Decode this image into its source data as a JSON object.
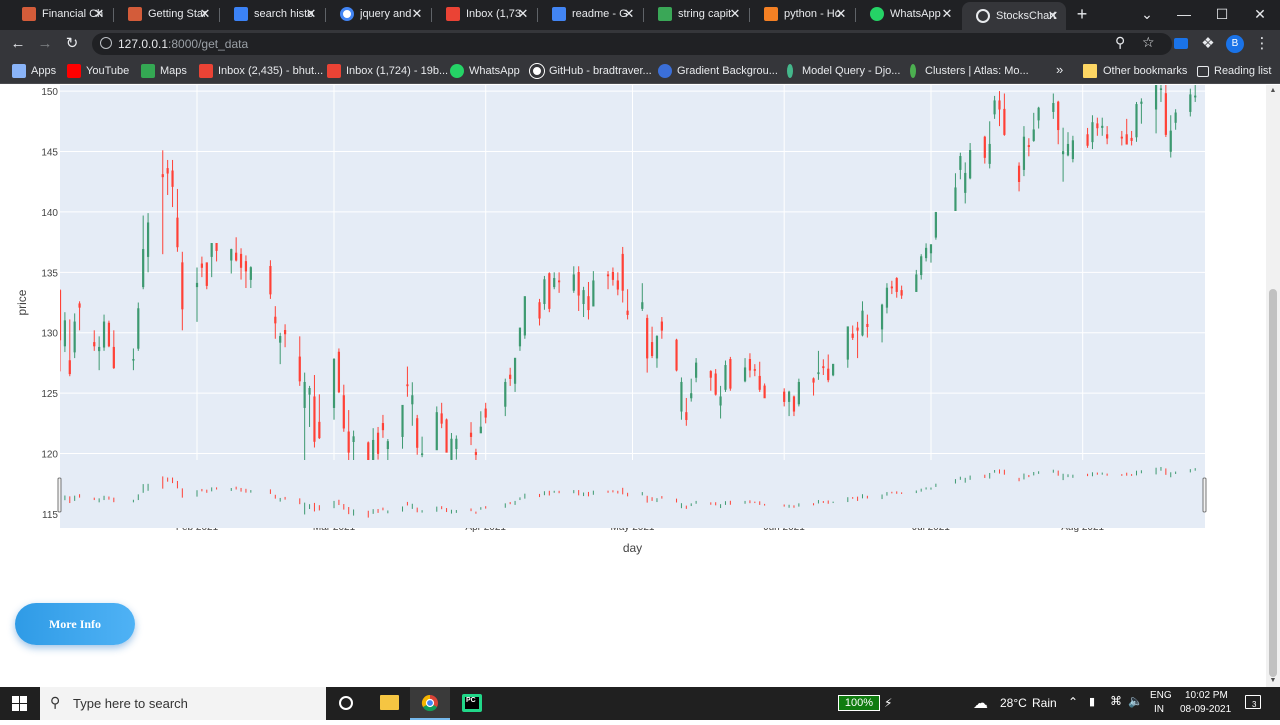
{
  "browser": {
    "tabs": [
      {
        "title": "Financial Ch",
        "icon": "chart-favicon-icon",
        "color": "#d35c3a"
      },
      {
        "title": "Getting Star",
        "icon": "chart-favicon-icon",
        "color": "#d35c3a"
      },
      {
        "title": "search histo",
        "icon": "edge-favicon-icon",
        "color": "#3b82f6"
      },
      {
        "title": "jquery and",
        "icon": "google-favicon-icon",
        "color": "#ffffff"
      },
      {
        "title": "Inbox (1,73",
        "icon": "gmail-favicon-icon",
        "color": "#ea4335"
      },
      {
        "title": "readme - G",
        "icon": "docs-favicon-icon",
        "color": "#4285f4"
      },
      {
        "title": "string capit",
        "icon": "link-favicon-icon",
        "color": "#3aa757"
      },
      {
        "title": "python - Ho",
        "icon": "stackoverflow-favicon-icon",
        "color": "#f48024"
      },
      {
        "title": "WhatsApp",
        "icon": "whatsapp-favicon-icon",
        "color": "#25d366"
      },
      {
        "title": "StocksChart",
        "icon": "globe-favicon-icon",
        "color": "#e8eaed",
        "active": true
      }
    ],
    "new_tab_label": "+",
    "url_host": "127.0.0.1",
    "url_path": ":8000/get_data",
    "profile_initial": "B",
    "bookmarks": [
      {
        "label": "Apps",
        "icon": "apps-grid-icon",
        "color": "#8ab4f8"
      },
      {
        "label": "YouTube",
        "icon": "youtube-icon",
        "color": "#ff0000"
      },
      {
        "label": "Maps",
        "icon": "maps-pin-icon",
        "color": "#34a853"
      },
      {
        "label": "Inbox (2,435) - bhut...",
        "icon": "gmail-icon",
        "color": "#ea4335"
      },
      {
        "label": "Inbox (1,724) - 19b...",
        "icon": "gmail-icon",
        "color": "#ea4335"
      },
      {
        "label": "WhatsApp",
        "icon": "whatsapp-icon",
        "color": "#25d366"
      },
      {
        "label": "GitHub - bradtraver...",
        "icon": "github-icon",
        "color": "#ffffff"
      },
      {
        "label": "Gradient Backgrou...",
        "icon": "gradient-icon",
        "color": "#3b6fd8"
      },
      {
        "label": "Model Query - Djo...",
        "icon": "django-icon",
        "color": "#44b78b"
      },
      {
        "label": "Clusters | Atlas: Mo...",
        "icon": "mongodb-leaf-icon",
        "color": "#4caf50"
      }
    ],
    "overflow_label": "»",
    "other_bookmarks": "Other bookmarks",
    "reading_list": "Reading list"
  },
  "chart_data": {
    "type": "candlestick",
    "ylabel": "price",
    "xlabel": "day",
    "y_ticks": [
      115,
      120,
      125,
      130,
      135,
      140,
      145,
      150
    ],
    "ylim": [
      114.5,
      151
    ],
    "xlim": [
      "2021-01-04",
      "2021-08-26"
    ],
    "x_ticks": [
      {
        "date": "2021-02-01",
        "label": "Feb 2021"
      },
      {
        "date": "2021-03-01",
        "label": "Mar 2021"
      },
      {
        "date": "2021-04-01",
        "label": "Apr 2021"
      },
      {
        "date": "2021-05-01",
        "label": "May 2021"
      },
      {
        "date": "2021-06-01",
        "label": "Jun 2021"
      },
      {
        "date": "2021-07-01",
        "label": "Jul 2021"
      },
      {
        "date": "2021-08-01",
        "label": "Aug 2021"
      }
    ],
    "increasing_color": "#3d9970",
    "decreasing_color": "#ff4136",
    "plot_bg": "#e5ecf6",
    "rangeslider": true,
    "candles": [
      [
        "2021-01-04",
        133.5,
        133.6,
        126.8,
        129.4
      ],
      [
        "2021-01-05",
        128.9,
        131.7,
        128.4,
        131.0
      ],
      [
        "2021-01-06",
        127.7,
        131.1,
        126.4,
        126.6
      ],
      [
        "2021-01-07",
        128.4,
        131.6,
        127.9,
        130.9
      ],
      [
        "2021-01-08",
        132.4,
        132.6,
        130.2,
        132.1
      ],
      [
        "2021-01-11",
        129.2,
        130.2,
        128.5,
        128.9
      ],
      [
        "2021-01-12",
        128.5,
        129.7,
        126.9,
        128.8
      ],
      [
        "2021-01-13",
        128.8,
        131.5,
        128.5,
        130.9
      ],
      [
        "2021-01-14",
        130.8,
        131.0,
        128.8,
        128.9
      ],
      [
        "2021-01-15",
        128.8,
        130.2,
        127.0,
        127.1
      ],
      [
        "2021-01-19",
        127.8,
        128.7,
        126.9,
        127.8
      ],
      [
        "2021-01-20",
        128.7,
        132.5,
        128.5,
        132.0
      ],
      [
        "2021-01-21",
        133.8,
        139.7,
        133.6,
        136.9
      ],
      [
        "2021-01-22",
        136.3,
        139.9,
        135.0,
        139.1
      ],
      [
        "2021-01-25",
        143.1,
        145.1,
        136.5,
        142.9
      ],
      [
        "2021-01-26",
        143.6,
        144.3,
        141.4,
        143.2
      ],
      [
        "2021-01-27",
        143.4,
        144.3,
        140.4,
        142.1
      ],
      [
        "2021-01-28",
        139.5,
        141.9,
        136.7,
        137.1
      ],
      [
        "2021-01-29",
        135.8,
        136.7,
        130.2,
        131.96
      ],
      [
        "2021-02-01",
        133.8,
        135.4,
        130.9,
        134.1
      ],
      [
        "2021-02-02",
        135.7,
        136.3,
        134.6,
        135.4
      ],
      [
        "2021-02-03",
        135.8,
        135.8,
        133.6,
        133.9
      ],
      [
        "2021-02-04",
        136.3,
        137.4,
        134.6,
        137.4
      ],
      [
        "2021-02-05",
        137.4,
        137.4,
        135.9,
        136.8
      ],
      [
        "2021-02-08",
        136.0,
        136.96,
        134.9,
        136.9
      ],
      [
        "2021-02-09",
        136.6,
        137.9,
        135.9,
        136.0
      ],
      [
        "2021-02-10",
        136.5,
        136.99,
        134.4,
        135.4
      ],
      [
        "2021-02-11",
        135.9,
        136.4,
        133.7,
        135.1
      ],
      [
        "2021-02-12",
        134.4,
        135.5,
        133.7,
        135.4
      ],
      [
        "2021-02-16",
        135.5,
        136.0,
        132.8,
        133.2
      ],
      [
        "2021-02-17",
        131.3,
        132.2,
        129.5,
        130.8
      ],
      [
        "2021-02-18",
        129.2,
        130.0,
        127.4,
        129.7
      ],
      [
        "2021-02-19",
        130.2,
        130.7,
        128.8,
        129.9
      ],
      [
        "2021-02-22",
        128.0,
        129.7,
        125.6,
        126.0
      ],
      [
        "2021-02-23",
        123.8,
        126.7,
        118.4,
        125.9
      ],
      [
        "2021-02-24",
        124.9,
        125.6,
        122.2,
        125.4
      ],
      [
        "2021-02-25",
        124.7,
        126.5,
        120.5,
        121.0
      ],
      [
        "2021-02-26",
        122.6,
        124.9,
        121.2,
        121.3
      ],
      [
        "2021-03-01",
        123.8,
        127.9,
        122.8,
        127.8
      ],
      [
        "2021-03-02",
        128.4,
        128.7,
        125.0,
        125.1
      ],
      [
        "2021-03-03",
        124.8,
        125.7,
        121.8,
        122.1
      ],
      [
        "2021-03-04",
        121.8,
        123.6,
        118.6,
        120.1
      ],
      [
        "2021-03-05",
        120.98,
        121.9,
        117.6,
        121.4
      ],
      [
        "2021-03-08",
        120.9,
        121.0,
        116.2,
        116.4
      ],
      [
        "2021-03-09",
        119.0,
        122.1,
        118.8,
        121.1
      ],
      [
        "2021-03-10",
        121.7,
        122.2,
        119.5,
        120.0
      ],
      [
        "2021-03-11",
        122.5,
        123.2,
        121.3,
        121.96
      ],
      [
        "2021-03-12",
        120.4,
        121.2,
        119.2,
        121.0
      ],
      [
        "2021-03-15",
        121.4,
        124.0,
        120.4,
        124.0
      ],
      [
        "2021-03-16",
        125.7,
        127.2,
        124.7,
        125.6
      ],
      [
        "2021-03-17",
        124.1,
        125.9,
        122.3,
        124.8
      ],
      [
        "2021-03-18",
        122.9,
        123.2,
        119.9,
        120.5
      ],
      [
        "2021-03-19",
        119.9,
        121.4,
        119.7,
        119.99
      ],
      [
        "2021-03-22",
        120.3,
        123.9,
        120.3,
        123.4
      ],
      [
        "2021-03-23",
        123.3,
        124.2,
        122.1,
        122.5
      ],
      [
        "2021-03-24",
        122.8,
        122.9,
        120.1,
        120.1
      ],
      [
        "2021-03-25",
        119.5,
        121.7,
        119.0,
        121.2
      ],
      [
        "2021-03-26",
        120.4,
        121.5,
        119.5,
        121.2
      ],
      [
        "2021-03-29",
        121.7,
        122.6,
        120.7,
        121.4
      ],
      [
        "2021-03-30",
        120.1,
        120.4,
        118.9,
        119.9
      ],
      [
        "2021-03-31",
        121.7,
        123.5,
        121.7,
        122.2
      ],
      [
        "2021-04-01",
        123.7,
        124.2,
        122.5,
        123.0
      ],
      [
        "2021-04-05",
        123.9,
        126.2,
        123.1,
        125.9
      ],
      [
        "2021-04-06",
        126.5,
        127.1,
        125.6,
        126.2
      ],
      [
        "2021-04-07",
        125.8,
        127.9,
        125.1,
        127.9
      ],
      [
        "2021-04-08",
        128.9,
        130.4,
        128.5,
        130.4
      ],
      [
        "2021-04-09",
        129.8,
        133.0,
        129.5,
        133.0
      ],
      [
        "2021-04-12",
        132.5,
        132.8,
        130.6,
        131.2
      ],
      [
        "2021-04-13",
        132.4,
        134.7,
        131.9,
        134.4
      ],
      [
        "2021-04-14",
        134.9,
        135.0,
        131.7,
        132.0
      ],
      [
        "2021-04-15",
        133.8,
        135.0,
        133.6,
        134.5
      ],
      [
        "2021-04-16",
        134.3,
        135.0,
        133.3,
        134.2
      ],
      [
        "2021-04-19",
        133.5,
        135.5,
        133.3,
        134.8
      ],
      [
        "2021-04-20",
        135.0,
        135.5,
        131.8,
        133.1
      ],
      [
        "2021-04-21",
        132.4,
        133.8,
        131.3,
        133.5
      ],
      [
        "2021-04-22",
        133.0,
        134.2,
        131.1,
        131.9
      ],
      [
        "2021-04-23",
        132.2,
        135.1,
        132.2,
        134.3
      ],
      [
        "2021-04-26",
        134.8,
        135.1,
        133.6,
        134.7
      ],
      [
        "2021-04-27",
        135.0,
        135.4,
        133.9,
        134.4
      ],
      [
        "2021-04-28",
        134.3,
        135.0,
        133.1,
        133.6
      ],
      [
        "2021-04-29",
        136.5,
        137.1,
        132.5,
        133.5
      ],
      [
        "2021-04-30",
        131.8,
        133.6,
        131.1,
        131.5
      ],
      [
        "2021-05-03",
        132.0,
        134.1,
        131.8,
        132.5
      ],
      [
        "2021-05-04",
        131.2,
        131.5,
        126.7,
        127.9
      ],
      [
        "2021-05-05",
        129.2,
        130.5,
        127.9,
        128.1
      ],
      [
        "2021-05-06",
        127.9,
        129.8,
        127.1,
        129.7
      ],
      [
        "2021-05-07",
        130.9,
        131.3,
        129.5,
        130.2
      ],
      [
        "2021-05-10",
        129.4,
        129.5,
        126.8,
        126.9
      ],
      [
        "2021-05-11",
        123.5,
        126.3,
        122.8,
        125.9
      ],
      [
        "2021-05-12",
        123.4,
        124.6,
        122.3,
        122.8
      ],
      [
        "2021-05-13",
        124.6,
        126.2,
        124.3,
        124.97
      ],
      [
        "2021-05-14",
        126.3,
        127.9,
        125.9,
        127.5
      ],
      [
        "2021-05-17",
        126.8,
        126.9,
        125.2,
        126.3
      ],
      [
        "2021-05-18",
        126.6,
        126.99,
        124.8,
        124.9
      ],
      [
        "2021-05-19",
        124.0,
        125.6,
        122.9,
        124.7
      ],
      [
        "2021-05-20",
        125.3,
        127.7,
        125.1,
        127.3
      ],
      [
        "2021-05-21",
        127.8,
        128.0,
        125.2,
        125.4
      ],
      [
        "2021-05-24",
        126.0,
        127.9,
        125.9,
        127.1
      ],
      [
        "2021-05-25",
        127.8,
        128.3,
        126.3,
        126.9
      ],
      [
        "2021-05-26",
        126.96,
        127.4,
        126.4,
        126.9
      ],
      [
        "2021-05-27",
        126.4,
        127.6,
        125.1,
        125.3
      ],
      [
        "2021-05-28",
        125.6,
        125.8,
        124.6,
        124.6
      ],
      [
        "2021-06-01",
        125.1,
        125.4,
        123.9,
        124.3
      ],
      [
        "2021-06-02",
        124.3,
        125.2,
        123.1,
        125.1
      ],
      [
        "2021-06-03",
        124.7,
        124.8,
        123.1,
        123.5
      ],
      [
        "2021-06-04",
        124.1,
        126.2,
        123.9,
        125.9
      ],
      [
        "2021-06-07",
        126.2,
        126.3,
        124.8,
        125.9
      ],
      [
        "2021-06-08",
        126.6,
        128.5,
        126.1,
        126.7
      ],
      [
        "2021-06-09",
        127.2,
        127.8,
        126.5,
        127.1
      ],
      [
        "2021-06-10",
        127.0,
        128.2,
        125.9,
        126.1
      ],
      [
        "2021-06-11",
        126.5,
        127.4,
        126.4,
        127.4
      ],
      [
        "2021-06-14",
        127.8,
        130.5,
        127.1,
        130.5
      ],
      [
        "2021-06-15",
        129.9,
        130.6,
        129.4,
        129.6
      ],
      [
        "2021-06-16",
        130.4,
        130.9,
        127.9,
        130.2
      ],
      [
        "2021-06-17",
        129.8,
        132.6,
        129.7,
        131.8
      ],
      [
        "2021-06-18",
        130.7,
        131.5,
        129.6,
        130.5
      ],
      [
        "2021-06-21",
        130.3,
        132.4,
        129.2,
        132.3
      ],
      [
        "2021-06-22",
        132.1,
        134.1,
        131.6,
        133.7
      ],
      [
        "2021-06-23",
        133.8,
        134.3,
        133.2,
        133.7
      ],
      [
        "2021-06-24",
        134.5,
        134.6,
        132.9,
        133.4
      ],
      [
        "2021-06-25",
        133.5,
        133.9,
        132.8,
        133.1
      ],
      [
        "2021-06-28",
        133.4,
        135.2,
        133.4,
        134.8
      ],
      [
        "2021-06-29",
        134.8,
        136.5,
        134.4,
        136.3
      ],
      [
        "2021-06-30",
        136.2,
        137.4,
        135.9,
        137.0
      ],
      [
        "2021-07-01",
        136.6,
        137.3,
        135.8,
        137.3
      ],
      [
        "2021-07-02",
        137.9,
        140.0,
        137.7,
        139.96
      ],
      [
        "2021-07-06",
        140.1,
        143.2,
        140.1,
        142.0
      ],
      [
        "2021-07-07",
        143.5,
        144.9,
        142.7,
        144.6
      ],
      [
        "2021-07-08",
        141.6,
        144.1,
        140.7,
        143.2
      ],
      [
        "2021-07-09",
        142.8,
        145.7,
        142.7,
        145.1
      ],
      [
        "2021-07-12",
        146.2,
        146.3,
        144.0,
        144.5
      ],
      [
        "2021-07-13",
        144.0,
        147.5,
        143.6,
        145.6
      ],
      [
        "2021-07-14",
        148.1,
        149.6,
        147.7,
        149.2
      ],
      [
        "2021-07-15",
        149.2,
        150.0,
        147.1,
        148.5
      ],
      [
        "2021-07-16",
        148.5,
        149.8,
        146.3,
        146.4
      ],
      [
        "2021-07-19",
        143.8,
        144.1,
        141.7,
        142.5
      ],
      [
        "2021-07-20",
        143.5,
        147.1,
        142.96,
        146.2
      ],
      [
        "2021-07-21",
        145.5,
        146.1,
        144.6,
        145.4
      ],
      [
        "2021-07-22",
        145.9,
        148.2,
        145.8,
        146.8
      ],
      [
        "2021-07-23",
        147.6,
        148.7,
        146.9,
        148.6
      ],
      [
        "2021-07-26",
        148.3,
        149.8,
        147.7,
        148.99
      ],
      [
        "2021-07-27",
        149.1,
        149.2,
        145.6,
        146.8
      ],
      [
        "2021-07-28",
        144.8,
        146.97,
        142.5,
        145.0
      ],
      [
        "2021-07-29",
        144.7,
        146.6,
        144.6,
        145.6
      ],
      [
        "2021-07-30",
        144.4,
        146.3,
        144.1,
        145.9
      ],
      [
        "2021-08-02",
        146.4,
        146.95,
        145.3,
        145.5
      ],
      [
        "2021-08-03",
        145.8,
        148.0,
        145.2,
        147.4
      ],
      [
        "2021-08-04",
        147.3,
        147.8,
        146.3,
        146.95
      ],
      [
        "2021-08-05",
        146.98,
        147.8,
        146.3,
        147.1
      ],
      [
        "2021-08-06",
        146.4,
        147.1,
        145.6,
        146.1
      ],
      [
        "2021-08-09",
        146.2,
        146.7,
        145.5,
        146.1
      ],
      [
        "2021-08-10",
        146.4,
        147.7,
        145.6,
        145.6
      ],
      [
        "2021-08-11",
        146.1,
        146.7,
        145.5,
        145.9
      ],
      [
        "2021-08-12",
        146.2,
        149.1,
        145.8,
        148.9
      ],
      [
        "2021-08-13",
        148.97,
        149.4,
        147.3,
        149.1
      ],
      [
        "2021-08-16",
        148.5,
        151.2,
        146.5,
        151.1
      ],
      [
        "2021-08-17",
        150.2,
        151.7,
        149.1,
        150.2
      ],
      [
        "2021-08-18",
        149.8,
        150.7,
        146.2,
        146.4
      ],
      [
        "2021-08-19",
        145.0,
        148.0,
        144.5,
        146.7
      ],
      [
        "2021-08-20",
        147.4,
        148.5,
        146.8,
        148.2
      ],
      [
        "2021-08-23",
        148.3,
        150.2,
        147.9,
        149.7
      ],
      [
        "2021-08-24",
        149.5,
        150.9,
        149.1,
        149.6
      ]
    ]
  },
  "page": {
    "more_info_label": "More Info"
  },
  "taskbar": {
    "search_placeholder": "Type here to search",
    "battery": "100%",
    "weather_temp": "28°C",
    "weather_text": "Rain",
    "lang_line1": "ENG",
    "lang_line2": "IN",
    "time": "10:02 PM",
    "date": "08-09-2021",
    "notification_count": "3"
  }
}
